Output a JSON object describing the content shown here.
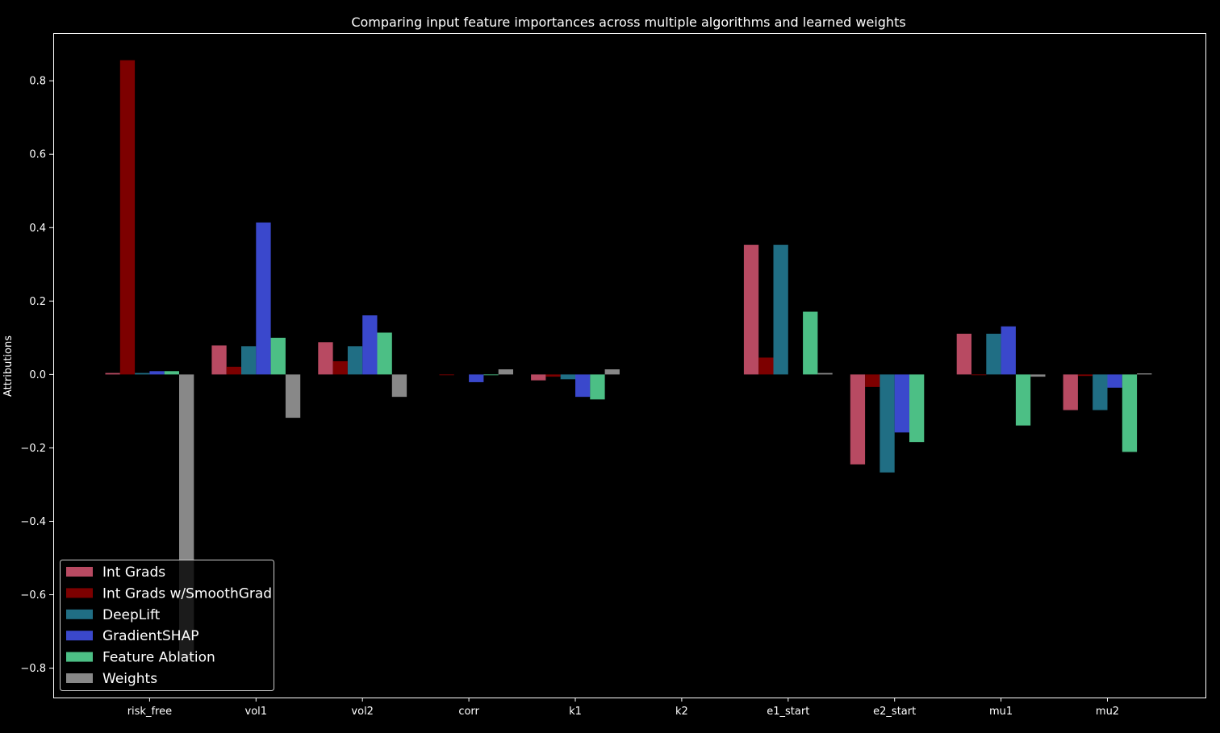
{
  "chart_data": {
    "type": "bar",
    "title": "Comparing input feature importances across multiple algorithms and learned weights",
    "xlabel": "",
    "ylabel": "Attributions",
    "ylim": [
      -0.88,
      0.93
    ],
    "yticks": [
      -0.8,
      -0.6,
      -0.4,
      -0.2,
      0.0,
      0.2,
      0.4,
      0.6,
      0.8
    ],
    "ytick_labels": [
      "−0.8",
      "−0.6",
      "−0.4",
      "−0.2",
      "0.0",
      "0.2",
      "0.4",
      "0.6",
      "0.8"
    ],
    "grid": false,
    "legend_position": "bottom-left",
    "background": "#000000",
    "categories": [
      "risk_free",
      "vol1",
      "vol2",
      "corr",
      "k1",
      "k2",
      "e1_start",
      "e2_start",
      "mu1",
      "mu2"
    ],
    "series": [
      {
        "name": "Int Grads",
        "color": "#b84a62",
        "values": [
          0.004,
          0.079,
          0.088,
          0.0,
          -0.016,
          0.0,
          0.353,
          -0.245,
          0.111,
          -0.097
        ]
      },
      {
        "name": "Int Grads w/SmoothGrad",
        "color": "#7d0000",
        "values": [
          0.856,
          0.021,
          0.036,
          -0.002,
          -0.006,
          0.0,
          0.046,
          -0.034,
          -0.002,
          -0.004
        ]
      },
      {
        "name": "DeepLift",
        "color": "#206e84",
        "values": [
          0.004,
          0.077,
          0.077,
          0.0,
          -0.013,
          0.0,
          0.353,
          -0.267,
          0.111,
          -0.097
        ]
      },
      {
        "name": "GradientSHAP",
        "color": "#3a48cc",
        "values": [
          0.009,
          0.414,
          0.161,
          -0.021,
          -0.061,
          0.0,
          0.0,
          -0.158,
          0.131,
          -0.036
        ]
      },
      {
        "name": "Feature Ablation",
        "color": "#4cbf85",
        "values": [
          0.009,
          0.1,
          0.114,
          -0.002,
          -0.068,
          0.0,
          0.171,
          -0.184,
          -0.139,
          -0.211
        ]
      },
      {
        "name": "Weights",
        "color": "#888888",
        "values": [
          -0.775,
          -0.118,
          -0.061,
          0.014,
          0.014,
          0.0,
          0.004,
          0.0,
          -0.006,
          0.003
        ]
      }
    ]
  }
}
